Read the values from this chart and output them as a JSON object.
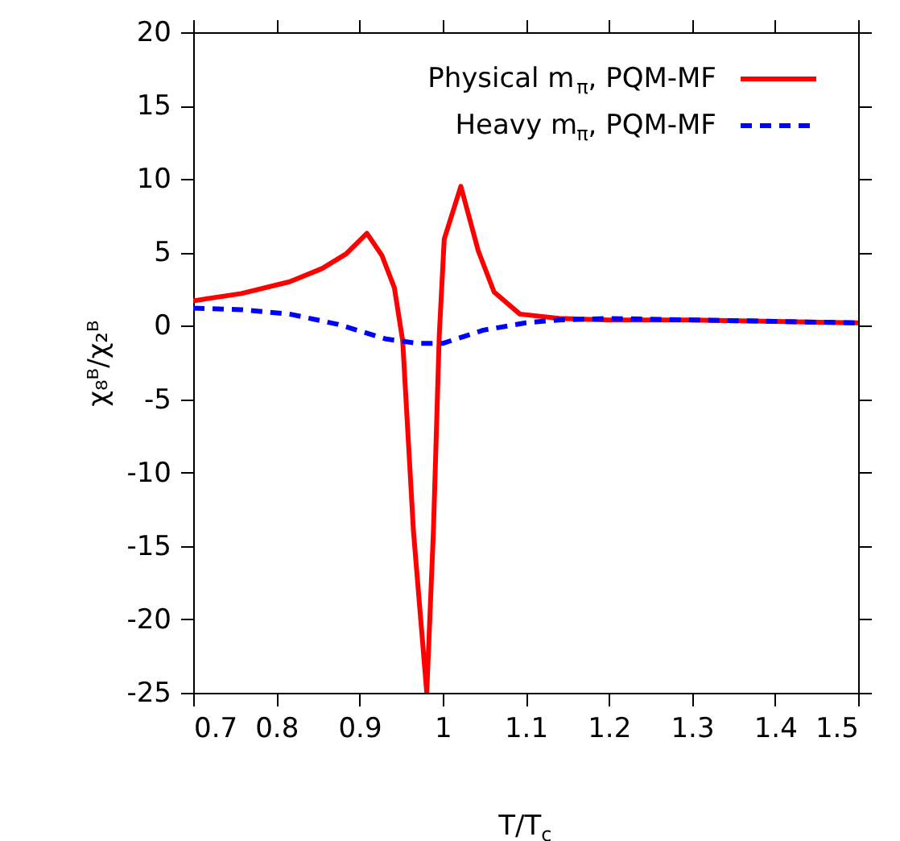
{
  "chart_data": {
    "type": "line",
    "xlabel": "T/T$_{c}$",
    "ylabel": "χ₈ᴮ/χ₂ᴮ",
    "xlim": [
      0.7,
      1.5
    ],
    "xticks": [
      0.7,
      0.8,
      0.9,
      {
        "value": 1,
        "label": "1"
      },
      1.1,
      1.2,
      1.3,
      1.4,
      1.5
    ],
    "ylim": [
      -25,
      20
    ],
    "yticks": [
      -25,
      -20,
      -15,
      -10,
      -5,
      0,
      5,
      10,
      15,
      20
    ],
    "grid": false,
    "legend": "top right",
    "marker": "none",
    "series": [
      {
        "name": "Physical m$_{π}$, PQM-MF",
        "color": "#ff0000",
        "line_style": "solid",
        "x": [
          0.7,
          0.758,
          0.816,
          0.855,
          0.884,
          0.909,
          0.927,
          0.942,
          0.952,
          0.965,
          0.981,
          0.989,
          0.996,
          1.002,
          1.022,
          1.043,
          1.062,
          1.093,
          1.14,
          1.2,
          1.3,
          1.4,
          1.5
        ],
        "values": [
          1.7,
          2.2,
          3.0,
          3.9,
          4.9,
          6.3,
          4.8,
          2.6,
          -1.0,
          -14,
          -25,
          -14,
          -0.7,
          5.9,
          9.5,
          5.1,
          2.3,
          0.8,
          0.5,
          0.4,
          0.4,
          0.3,
          0.2
        ]
      },
      {
        "name": "Heavy m$_{π}$, PQM-MF",
        "color": "#0000ff",
        "line_style": "dashed",
        "x": [
          0.7,
          0.758,
          0.816,
          0.874,
          0.932,
          0.971,
          1.0,
          1.049,
          1.1,
          1.14,
          1.2,
          1.3,
          1.4,
          1.5
        ],
        "values": [
          1.2,
          1.1,
          0.8,
          0.1,
          -0.9,
          -1.2,
          -1.2,
          -0.3,
          0.2,
          0.4,
          0.5,
          0.4,
          0.3,
          0.2
        ]
      }
    ]
  }
}
